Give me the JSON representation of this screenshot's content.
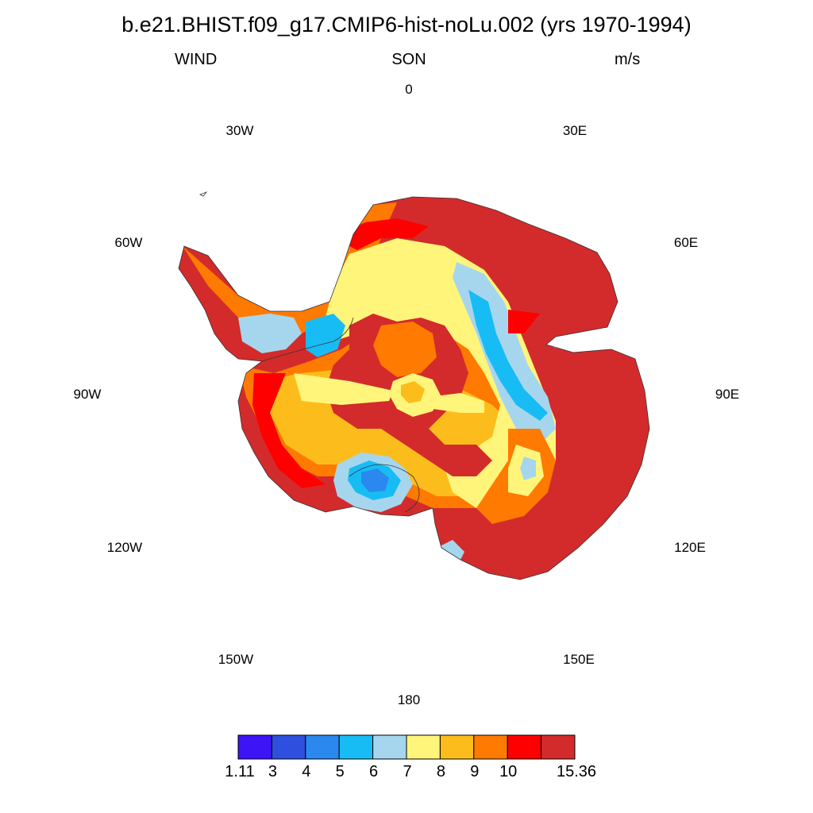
{
  "header": {
    "title": "b.e21.BHIST.f09_g17.CMIP6-hist-noLu.002 (yrs 1970-1994)",
    "left": "WIND",
    "center": "SON",
    "right": "m/s"
  },
  "map": {
    "projection": "south polar stereographic",
    "longitude_labels": [
      "0",
      "30E",
      "60E",
      "90E",
      "120E",
      "150E",
      "180",
      "150W",
      "120W",
      "90W",
      "60W",
      "30W"
    ],
    "variable": "WIND",
    "season": "SON",
    "units": "m/s"
  },
  "colorbar": {
    "labels": [
      "1.11",
      "3",
      "4",
      "5",
      "6",
      "7",
      "8",
      "9",
      "10",
      "15.36"
    ],
    "colors": [
      "#3c14f5",
      "#2f4fde",
      "#2a88ee",
      "#18bcf4",
      "#a6d6ee",
      "#fff57a",
      "#fcbd1c",
      "#ff7a00",
      "#fe0000",
      "#d32b2b"
    ]
  },
  "colors": {
    "coastline": "#333333",
    "cell_edge": "#000000"
  }
}
